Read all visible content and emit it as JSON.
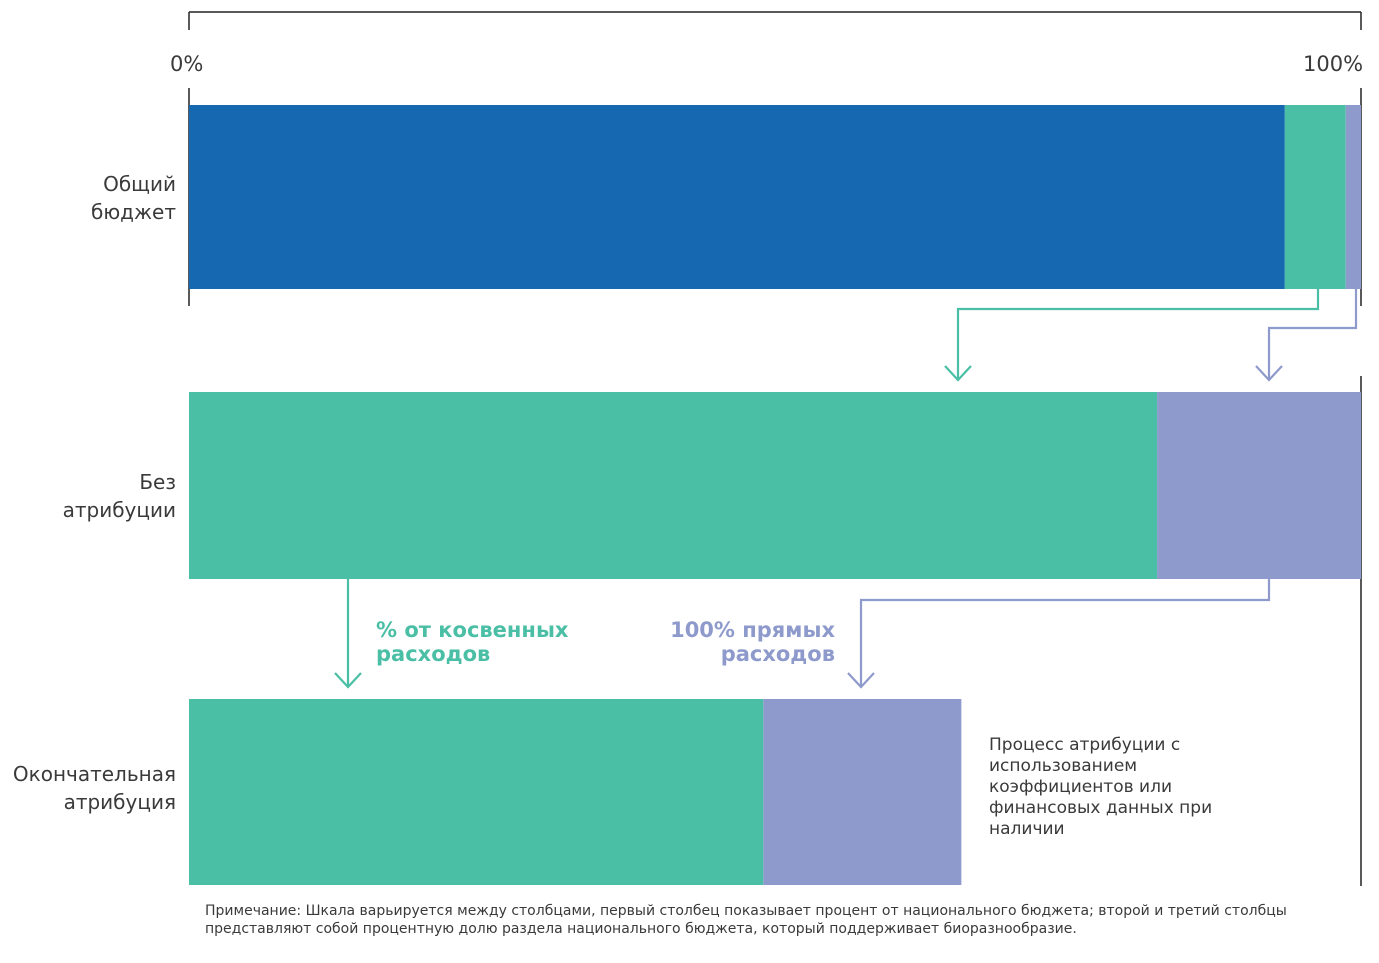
{
  "scale": {
    "start_label": "0%",
    "end_label": "100%"
  },
  "rows": [
    {
      "label_line1": "Общий",
      "label_line2": "бюджет"
    },
    {
      "label_line1": "Без",
      "label_line2": "атрибуции"
    },
    {
      "label_line1": "Окончательная",
      "label_line2": "атрибуция"
    }
  ],
  "colors": {
    "total": "#1668b0",
    "indirect": "#4abfa5",
    "direct": "#8d9acb",
    "axis": "#222222"
  },
  "shares": {
    "total_budget": [
      {
        "key": "other",
        "color": "#1668b0",
        "value": 0.935
      },
      {
        "key": "indirect",
        "color": "#4abfa5",
        "value": 0.052
      },
      {
        "key": "direct",
        "color": "#8d9acb",
        "value": 0.013
      }
    ],
    "no_attribution": [
      {
        "key": "indirect",
        "color": "#4abfa5",
        "value": 0.826
      },
      {
        "key": "direct",
        "color": "#8d9acb",
        "value": 0.174
      }
    ],
    "final_attribution": [
      {
        "key": "indirect",
        "color": "#4abfa5",
        "value": 0.49
      },
      {
        "key": "direct",
        "color": "#8d9acb",
        "value": 0.169
      }
    ]
  },
  "flow_labels": {
    "indirect_line1": "% от косвенных",
    "indirect_line2": "расходов",
    "direct_line1": "100% прямых",
    "direct_line2": "расходов"
  },
  "side_note": "Процесс атрибуции с использованием коэффициентов или финансовых данных при наличии",
  "footnote": "Примечание: Шкала варьируется между столбцами, первый столбец показывает процент от национального бюджета; второй и третий столбцы представляют собой процентную долю раздела национального бюджета, который поддерживает биоразнообразие."
}
